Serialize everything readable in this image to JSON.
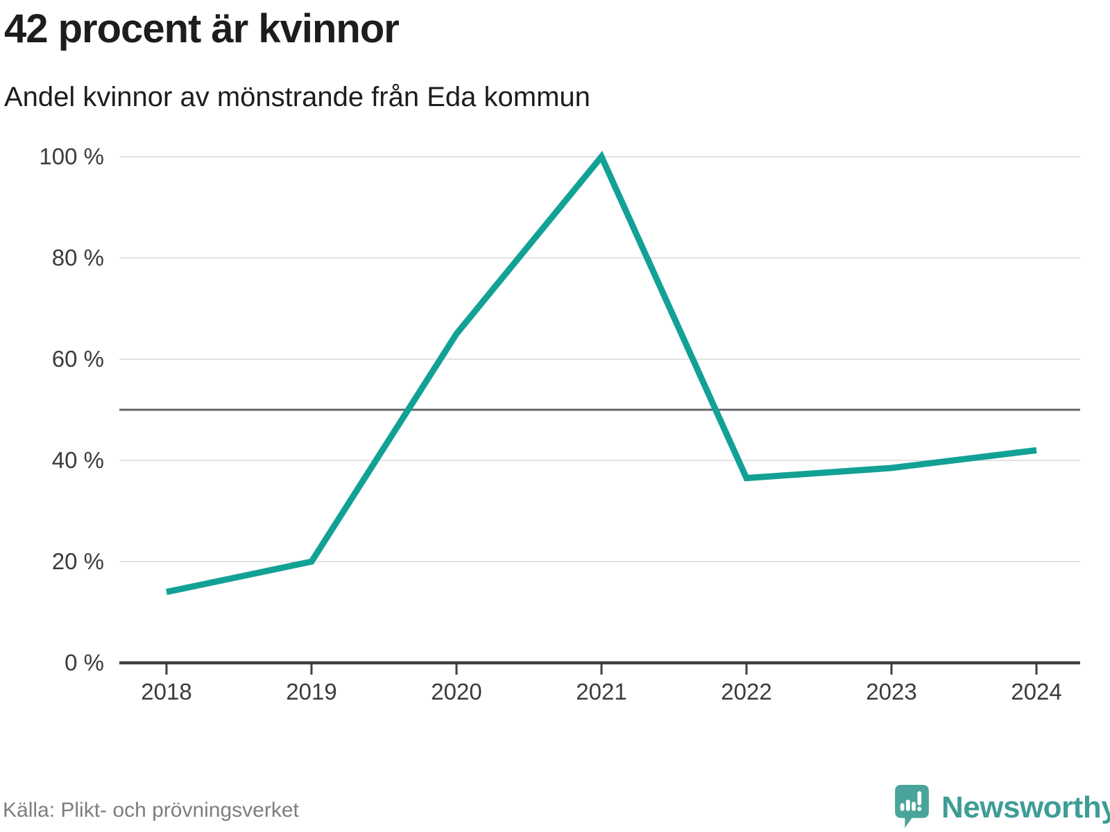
{
  "header": {
    "title": "42 procent är kvinnor",
    "subtitle": "Andel kvinnor av mönstrande från Eda kommun"
  },
  "chart_data": {
    "type": "line",
    "x": [
      2018,
      2019,
      2020,
      2021,
      2022,
      2023,
      2024
    ],
    "xtick_labels": [
      "2018",
      "2019",
      "2020",
      "2021",
      "2022",
      "2023",
      "2024"
    ],
    "series": [
      {
        "name": "Andel kvinnor av mönstrande",
        "values": [
          14,
          20,
          65,
          100,
          36.5,
          38.5,
          42
        ]
      }
    ],
    "ylim": [
      0,
      100
    ],
    "yticks": [
      0,
      20,
      40,
      60,
      80,
      100
    ],
    "ytick_labels": [
      "0 %",
      "20 %",
      "40 %",
      "60 %",
      "80 %",
      "100 %"
    ],
    "reference_line": 50,
    "grid": true,
    "legend": "none"
  },
  "colors": {
    "line": "#12a195",
    "grid": "#e2e2e2",
    "reference": "#63666a",
    "axis": "#3f3f3f",
    "tick_text": "#3b3b3b",
    "title_text": "#1d1d1b",
    "source_text": "#7e7e7e",
    "brand_teal": "#3e9d95",
    "logo_bubble": "#4aa49c"
  },
  "footer": {
    "source": "Källa: Plikt- och prövningsverket",
    "brand": "Newsworthy"
  }
}
